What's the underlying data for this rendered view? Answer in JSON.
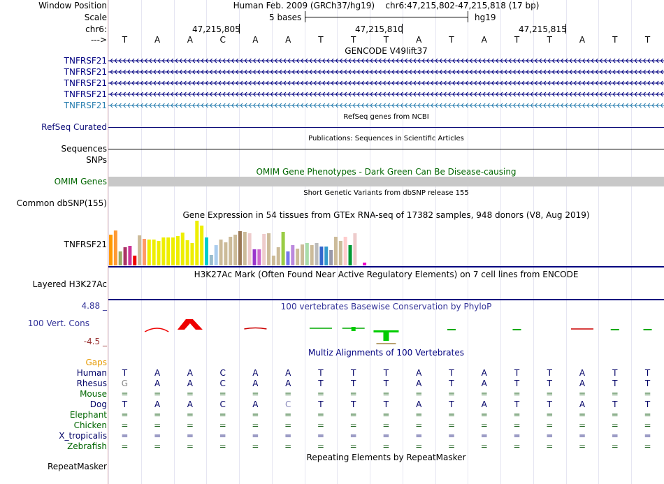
{
  "labels": {
    "window_position": "Window Position",
    "scale": "Scale",
    "chr": "chr6:",
    "arrow": "--->",
    "refseq": "RefSeq Curated",
    "sequences": "Sequences",
    "snps": "SNPs",
    "omim": "OMIM Genes",
    "common_dbsnp": "Common dbSNP(155)",
    "gtex_gene": "TNFRSF21",
    "h3k27ac": "Layered H3K27Ac",
    "cons_max": "4.88 _",
    "cons": "100 Vert. Cons",
    "cons_min": "-4.5 _",
    "gaps": "Gaps",
    "repeatmasker": "RepeatMasker"
  },
  "header": {
    "assembly": "Human Feb. 2009 (GRCh37/hg19)",
    "position": "chr6:47,215,802-47,215,818 (17 bp)",
    "scale_text": "5 bases",
    "scale_db": "hg19",
    "coords": [
      "47,215,805",
      "47,215,810",
      "47,215,815"
    ]
  },
  "sequence": [
    "T",
    "A",
    "A",
    "C",
    "A",
    "A",
    "T",
    "T",
    "T",
    "A",
    "T",
    "A",
    "T",
    "T",
    "A",
    "T",
    "T"
  ],
  "tracks": {
    "gencode_title": "GENCODE V49lift37",
    "gencode_genes": [
      "TNFRSF21",
      "TNFRSF21",
      "TNFRSF21",
      "TNFRSF21",
      "TNFRSF21"
    ],
    "refseq_title": "RefSeq genes from NCBI",
    "pubs_title": "Publications: Sequences in Scientific Articles",
    "omim_title": "OMIM Gene Phenotypes - Dark Green Can Be Disease-causing",
    "dbsnp_title": "Short Genetic Variants from dbSNP release 155",
    "gtex_title": "Gene Expression in 54 tissues from GTEx RNA-seq of 17382 samples, 948 donors (V8, Aug 2019)",
    "h3k27ac_title": "H3K27Ac Mark (Often Found Near Active Regulatory Elements) on 7 cell lines from ENCODE",
    "phylop_title": "100 vertebrates Basewise Conservation by PhyloP",
    "multiz_title": "Multiz Alignments of 100 Vertebrates",
    "repeat_title": "Repeating Elements by RepeatMasker"
  },
  "gtex_bars": [
    {
      "h": 44,
      "c": "#ff9900"
    },
    {
      "h": 50,
      "c": "#ff9933"
    },
    {
      "h": 20,
      "c": "#99aa66"
    },
    {
      "h": 26,
      "c": "#aa3366"
    },
    {
      "h": 28,
      "c": "#cc3399"
    },
    {
      "h": 14,
      "c": "#ee0000"
    },
    {
      "h": 43,
      "c": "#ccbb99"
    },
    {
      "h": 38,
      "c": "#ff9966"
    },
    {
      "h": 37,
      "c": "#eeee00"
    },
    {
      "h": 37,
      "c": "#eeee00"
    },
    {
      "h": 35,
      "c": "#eeee00"
    },
    {
      "h": 40,
      "c": "#eeee00"
    },
    {
      "h": 40,
      "c": "#eeee00"
    },
    {
      "h": 40,
      "c": "#eeee00"
    },
    {
      "h": 42,
      "c": "#eeee00"
    },
    {
      "h": 47,
      "c": "#eeee00"
    },
    {
      "h": 36,
      "c": "#eeee00"
    },
    {
      "h": 32,
      "c": "#eeee00"
    },
    {
      "h": 64,
      "c": "#eeee00"
    },
    {
      "h": 57,
      "c": "#eeee00"
    },
    {
      "h": 40,
      "c": "#00cccc"
    },
    {
      "h": 15,
      "c": "#99bbcc"
    },
    {
      "h": 29,
      "c": "#aaccee"
    },
    {
      "h": 37,
      "c": "#ccbb99"
    },
    {
      "h": 33,
      "c": "#ccbb99"
    },
    {
      "h": 41,
      "c": "#ccbb99"
    },
    {
      "h": 44,
      "c": "#ccbb99"
    },
    {
      "h": 49,
      "c": "#997755"
    },
    {
      "h": 48,
      "c": "#ccbb99"
    },
    {
      "h": 46,
      "c": "#eecccc"
    },
    {
      "h": 23,
      "c": "#9933cc"
    },
    {
      "h": 23,
      "c": "#cc66cc"
    },
    {
      "h": 45,
      "c": "#eecccc"
    },
    {
      "h": 46,
      "c": "#ccbb99"
    },
    {
      "h": 14,
      "c": "#ccbb99"
    },
    {
      "h": 26,
      "c": "#ccbb99"
    },
    {
      "h": 48,
      "c": "#99cc44"
    },
    {
      "h": 20,
      "c": "#7777ee"
    },
    {
      "h": 29,
      "c": "#bb88dd"
    },
    {
      "h": 24,
      "c": "#ccbb99"
    },
    {
      "h": 30,
      "c": "#ccbb99"
    },
    {
      "h": 32,
      "c": "#aaddaa"
    },
    {
      "h": 29,
      "c": "#ccbb99"
    },
    {
      "h": 32,
      "c": "#bbbbbb"
    },
    {
      "h": 27,
      "c": "#3366cc"
    },
    {
      "h": 27,
      "c": "#3399cc"
    },
    {
      "h": 22,
      "c": "#9999aa"
    },
    {
      "h": 41,
      "c": "#ccbb99"
    },
    {
      "h": 35,
      "c": "#ccbb99"
    },
    {
      "h": 41,
      "c": "#ffcccc"
    },
    {
      "h": 29,
      "c": "#009933"
    },
    {
      "h": 46,
      "c": "#eecccc"
    },
    {
      "h": 0,
      "c": "#ffffff"
    },
    {
      "h": 4,
      "c": "#ee00cc"
    }
  ],
  "alignment": [
    {
      "species": "Human",
      "color": "#000066",
      "bases": [
        "T",
        "A",
        "A",
        "C",
        "A",
        "A",
        "T",
        "T",
        "T",
        "A",
        "T",
        "A",
        "T",
        "T",
        "A",
        "T",
        "T"
      ]
    },
    {
      "species": "Rhesus",
      "color": "#000066",
      "bases": [
        "G",
        "A",
        "A",
        "C",
        "A",
        "A",
        "T",
        "T",
        "T",
        "A",
        "T",
        "A",
        "T",
        "T",
        "A",
        "T",
        "T"
      ]
    },
    {
      "species": "Mouse",
      "color": "#006600",
      "bases": [
        "=",
        "=",
        "=",
        "=",
        "=",
        "=",
        "=",
        "=",
        "=",
        "=",
        "=",
        "=",
        "=",
        "=",
        "=",
        "=",
        "="
      ]
    },
    {
      "species": "Dog",
      "color": "#000066",
      "bases": [
        "T",
        "A",
        "A",
        "C",
        "A",
        "C",
        "T",
        "T",
        "T",
        "A",
        "T",
        "A",
        "T",
        "T",
        "A",
        "T",
        "T"
      ]
    },
    {
      "species": "Elephant",
      "color": "#006600",
      "bases": [
        "=",
        "=",
        "=",
        "=",
        "=",
        "=",
        "=",
        "=",
        "=",
        "=",
        "=",
        "=",
        "=",
        "=",
        "=",
        "=",
        "="
      ]
    },
    {
      "species": "Chicken",
      "color": "#006600",
      "bases": [
        "=",
        "=",
        "=",
        "=",
        "=",
        "=",
        "=",
        "=",
        "=",
        "=",
        "=",
        "=",
        "=",
        "=",
        "=",
        "=",
        "="
      ]
    },
    {
      "species": "X_tropicalis",
      "color": "#000066",
      "bases": [
        "=",
        "=",
        "=",
        "=",
        "=",
        "=",
        "=",
        "=",
        "=",
        "=",
        "=",
        "=",
        "=",
        "=",
        "=",
        "=",
        "="
      ]
    },
    {
      "species": "Zebrafish",
      "color": "#006600",
      "bases": [
        "=",
        "=",
        "=",
        "=",
        "=",
        "=",
        "=",
        "=",
        "=",
        "=",
        "=",
        "=",
        "=",
        "=",
        "=",
        "=",
        "="
      ]
    }
  ],
  "colors": {
    "gencode": "#000080",
    "gencode_last": "#2a7fb0",
    "refseq": "#0c0c78",
    "omim_label": "#006600",
    "omim_bar": "#c8c8c8",
    "cons_label": "#333399",
    "cons_min": "#993333",
    "gaps": "#e69900",
    "rhesus_mismatch": "#888888",
    "dog_mismatch": "#8888bb"
  }
}
